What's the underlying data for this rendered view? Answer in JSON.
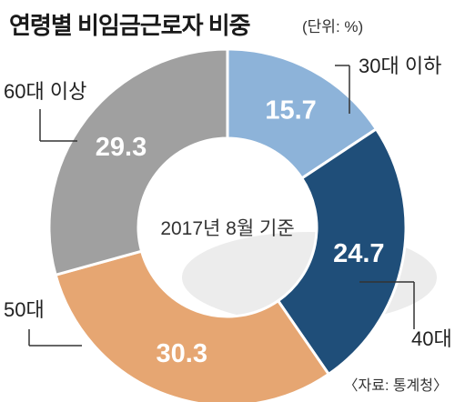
{
  "title": "연령별 비임금근로자 비중",
  "unit": "(단위: %)",
  "center_label": "2017년 8월 기준",
  "source": "〈자료: 통계청〉",
  "chart_data": {
    "type": "pie",
    "title": "연령별 비임금근로자 비중",
    "unit": "%",
    "categories": [
      "30대 이하",
      "40대",
      "50대",
      "60대 이상"
    ],
    "values": [
      15.7,
      24.7,
      30.3,
      29.3
    ],
    "colors": [
      "#8db3d9",
      "#1f4e79",
      "#e6a672",
      "#a0a0a0"
    ],
    "value_label_colors": [
      "#ffffff",
      "#ffffff",
      "#ffffff",
      "#ffffff"
    ],
    "donut": true,
    "center_label": "2017년 8월 기준"
  }
}
